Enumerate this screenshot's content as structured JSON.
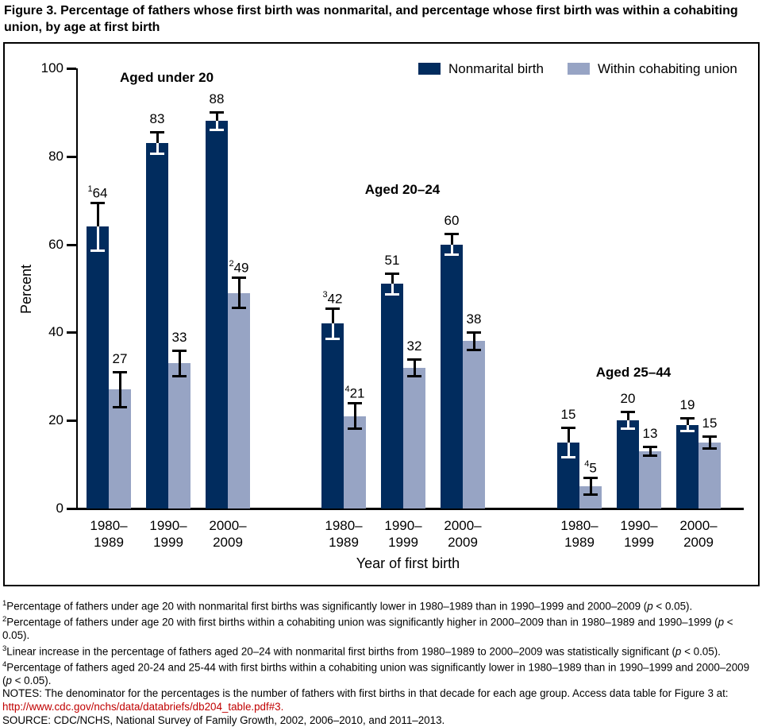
{
  "title": "Figure 3. Percentage of fathers whose first birth was nonmarital, and percentage whose first birth was within a cohabiting union, by age at first birth",
  "chart_data": {
    "type": "bar",
    "ylabel": "Percent",
    "xlabel": "Year of first birth",
    "ylim": [
      0,
      100
    ],
    "yticks": [
      0,
      20,
      40,
      60,
      80,
      100
    ],
    "grid": "off",
    "legend_position": "top-right-inside",
    "error_bars": true,
    "colors": {
      "nonmarital": "#012c5e",
      "cohabiting": "#97a4c4"
    },
    "legend": [
      {
        "key": "nonmarital",
        "label": "Nonmarital birth"
      },
      {
        "key": "cohabiting",
        "label": "Within cohabiting union"
      }
    ],
    "groups": [
      {
        "heading": "Aged under 20",
        "pairs": [
          {
            "category": [
              "1980–",
              "1989"
            ],
            "nonmarital": {
              "value": 64,
              "err": 5.5,
              "sup": "1"
            },
            "cohabiting": {
              "value": 27,
              "err": 4
            }
          },
          {
            "category": [
              "1990–",
              "1999"
            ],
            "nonmarital": {
              "value": 83,
              "err": 2.5
            },
            "cohabiting": {
              "value": 33,
              "err": 3
            }
          },
          {
            "category": [
              "2000–",
              "2009"
            ],
            "nonmarital": {
              "value": 88,
              "err": 2
            },
            "cohabiting": {
              "value": 49,
              "err": 3.5,
              "sup": "2"
            }
          }
        ]
      },
      {
        "heading": "Aged 20–24",
        "pairs": [
          {
            "category": [
              "1980–",
              "1989"
            ],
            "nonmarital": {
              "value": 42,
              "err": 3.5,
              "sup": "3"
            },
            "cohabiting": {
              "value": 21,
              "err": 3,
              "sup": "4"
            }
          },
          {
            "category": [
              "1990–",
              "1999"
            ],
            "nonmarital": {
              "value": 51,
              "err": 2.5
            },
            "cohabiting": {
              "value": 32,
              "err": 2
            }
          },
          {
            "category": [
              "2000–",
              "2009"
            ],
            "nonmarital": {
              "value": 60,
              "err": 2.5
            },
            "cohabiting": {
              "value": 38,
              "err": 2
            }
          }
        ]
      },
      {
        "heading": "Aged 25–44",
        "pairs": [
          {
            "category": [
              "1980–",
              "1989"
            ],
            "nonmarital": {
              "value": 15,
              "err": 3.5
            },
            "cohabiting": {
              "value": 5,
              "err": 2,
              "sup": "4"
            }
          },
          {
            "category": [
              "1990–",
              "1999"
            ],
            "nonmarital": {
              "value": 20,
              "err": 2
            },
            "cohabiting": {
              "value": 13,
              "err": 1
            }
          },
          {
            "category": [
              "2000–",
              "2009"
            ],
            "nonmarital": {
              "value": 19,
              "err": 1.5
            },
            "cohabiting": {
              "value": 15,
              "err": 1.5
            }
          }
        ]
      }
    ]
  },
  "footnotes": [
    {
      "marker": "1",
      "text": "Percentage of fathers under age 20 with nonmarital first births was significantly lower in 1980–1989 than in 1990–1999 and 2000–2009 (p < 0.05)."
    },
    {
      "marker": "2",
      "text": "Percentage of fathers under age 20 with first births within a cohabiting union was significantly higher in 2000–2009 than in 1980–1989 and 1990–1999 (p < 0.05)."
    },
    {
      "marker": "3",
      "text": "Linear increase in the percentage of fathers aged 20–24 with nonmarital first births from 1980–1989 to 2000–2009 was statistically significant (p < 0.05)."
    },
    {
      "marker": "4",
      "text": "Percentage of fathers aged 20-24 and 25-44 with first births within a cohabiting union was significantly lower in 1980–1989 than in 1990–1999 and 2000–2009 (p < 0.05)."
    }
  ],
  "notes_text": "NOTES: The denominator for the percentages is the number of fathers with first births in that decade for each age group. Access data table for Figure 3 at:",
  "link_text": "http://www.cdc.gov/nchs/data/databriefs/db204_table.pdf#3.",
  "source_text": "SOURCE: CDC/NCHS, National Survey of Family Growth, 2002, 2006–2010, and 2011–2013."
}
